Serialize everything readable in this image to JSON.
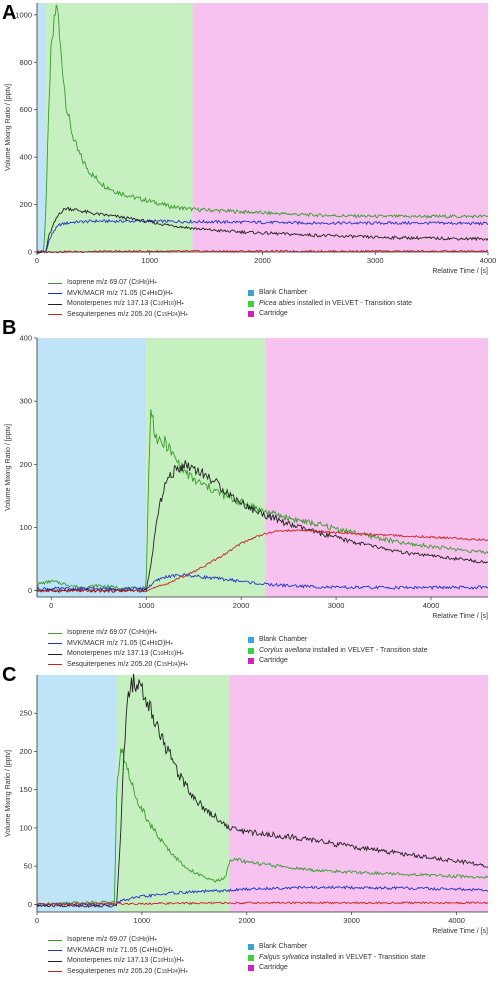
{
  "chart_data": [
    {
      "type": "line",
      "panel_label": "A",
      "title": "",
      "xlabel": "Relative Time / [s]",
      "ylabel": "Volume Mixing Ratio / [pptv]",
      "xlim": [
        0,
        4000
      ],
      "ylim": [
        0,
        1050
      ],
      "xticks": [
        0,
        1000,
        2000,
        3000,
        4000
      ],
      "yticks": [
        0,
        200,
        400,
        600,
        800,
        1000
      ],
      "phases": [
        {
          "name": "Blank Chamber",
          "start": 0,
          "end": 80,
          "color": "#bfe4f7"
        },
        {
          "name": "Picea abies installed in VELVET - Transition state",
          "start": 80,
          "end": 1380,
          "color": "#c6f0c0"
        },
        {
          "name": "Cartridge",
          "start": 1380,
          "end": 4000,
          "color": "#f8c2f0"
        }
      ],
      "phase_legend": [
        {
          "swatch": "#3aa4d8",
          "pre": "Blank Chamber",
          "italic": "",
          "post": ""
        },
        {
          "swatch": "#3ed13e",
          "pre": "",
          "italic": "Picea abies",
          "post": " installed in VELVET - Transition state"
        },
        {
          "swatch": "#d020c0",
          "pre": "Cartridge",
          "italic": "",
          "post": ""
        }
      ],
      "series": [
        {
          "name": "Isoprene m/z 69.07 (C5H8)H+",
          "color": "#3a9a2e",
          "x": [
            0,
            60,
            80,
            100,
            120,
            140,
            160,
            180,
            200,
            230,
            260,
            300,
            350,
            400,
            450,
            500,
            600,
            700,
            800,
            900,
            1000,
            1200,
            1380,
            1600,
            2000,
            2500,
            3000,
            3500,
            4000
          ],
          "y": [
            0,
            0,
            200,
            520,
            820,
            900,
            1000,
            1050,
            900,
            760,
            620,
            520,
            440,
            390,
            350,
            320,
            280,
            255,
            240,
            225,
            215,
            190,
            180,
            175,
            165,
            155,
            150,
            150,
            150
          ]
        },
        {
          "name": "MVK/MACR m/z 71.05 (C4H6O)H+",
          "color": "#2233cc",
          "x": [
            0,
            80,
            100,
            150,
            200,
            300,
            500,
            1000,
            1380,
            2000,
            2500,
            3000,
            3500,
            4000
          ],
          "y": [
            0,
            0,
            40,
            90,
            115,
            125,
            130,
            130,
            128,
            125,
            122,
            122,
            122,
            120
          ]
        },
        {
          "name": "Monoterpenes m/z 137.13 (C10H16)H+",
          "color": "#222222",
          "x": [
            0,
            80,
            100,
            150,
            200,
            260,
            300,
            400,
            500,
            700,
            900,
            1100,
            1380,
            1600,
            2000,
            2500,
            3000,
            3500,
            4000
          ],
          "y": [
            0,
            0,
            60,
            120,
            165,
            185,
            182,
            172,
            162,
            150,
            135,
            118,
            100,
            90,
            80,
            70,
            62,
            58,
            55
          ]
        },
        {
          "name": "Sesquiterpenes m/z 205.20 (C15H24)H+",
          "color": "#cc2222",
          "x": [
            0,
            500,
            1000,
            2000,
            3000,
            4000
          ],
          "y": [
            0,
            2,
            3,
            3,
            3,
            3
          ]
        }
      ]
    },
    {
      "type": "line",
      "panel_label": "B",
      "title": "",
      "xlabel": "Relative Time / [s]",
      "ylabel": "Volume Mixing Ratio / [pptv]",
      "xlim": [
        -150,
        4600
      ],
      "ylim": [
        -10,
        400
      ],
      "xticks": [
        0,
        1000,
        2000,
        3000,
        4000
      ],
      "yticks": [
        0,
        100,
        200,
        300,
        400
      ],
      "phases": [
        {
          "name": "Blank Chamber",
          "start": -150,
          "end": 1000,
          "color": "#bfe4f7"
        },
        {
          "name": "Corylus avellana installed in VELVET - Transition state",
          "start": 1000,
          "end": 2250,
          "color": "#c6f0c0"
        },
        {
          "name": "Cartridge",
          "start": 2250,
          "end": 4600,
          "color": "#f8c2f0"
        }
      ],
      "phase_legend": [
        {
          "swatch": "#3aa4d8",
          "pre": "Blank Chamber",
          "italic": "",
          "post": ""
        },
        {
          "swatch": "#3ed13e",
          "pre": "",
          "italic": "Corylus avellana",
          "post": " installed in VELVET - Transition state"
        },
        {
          "swatch": "#d020c0",
          "pre": "Cartridge",
          "italic": "",
          "post": ""
        }
      ],
      "series": [
        {
          "name": "Isoprene m/z 69.07 (C5H8)H+",
          "color": "#3a9a2e",
          "x": [
            -150,
            0,
            100,
            300,
            500,
            700,
            900,
            1000,
            1020,
            1050,
            1100,
            1150,
            1200,
            1300,
            1400,
            1500,
            1700,
            1900,
            2100,
            2250,
            2500,
            2800,
            3100,
            3400,
            3700,
            4000,
            4300,
            4600
          ],
          "y": [
            10,
            15,
            12,
            5,
            8,
            5,
            3,
            5,
            150,
            290,
            245,
            230,
            235,
            210,
            190,
            175,
            160,
            145,
            135,
            125,
            115,
            105,
            95,
            85,
            75,
            70,
            65,
            60
          ]
        },
        {
          "name": "MVK/MACR m/z 71.05 (C4H6O)H+",
          "color": "#2233cc",
          "x": [
            -150,
            1000,
            1100,
            1200,
            1400,
            1700,
            2000,
            2250,
            2500,
            3000,
            3500,
            4000,
            4600
          ],
          "y": [
            3,
            3,
            15,
            22,
            25,
            20,
            15,
            10,
            8,
            5,
            5,
            5,
            5
          ]
        },
        {
          "name": "Monoterpenes m/z 137.13 (C10H16)H+",
          "color": "#222222",
          "x": [
            -150,
            1000,
            1050,
            1100,
            1150,
            1200,
            1300,
            1400,
            1500,
            1700,
            1900,
            2100,
            2250,
            2500,
            2800,
            3100,
            3400,
            3700,
            4000,
            4300,
            4600
          ],
          "y": [
            0,
            0,
            40,
            100,
            140,
            170,
            190,
            200,
            195,
            175,
            150,
            130,
            120,
            105,
            92,
            80,
            70,
            60,
            55,
            50,
            45
          ]
        },
        {
          "name": "Sesquiterpenes m/z 205.20 (C15H24)H+",
          "color": "#cc2222",
          "x": [
            -150,
            1000,
            1200,
            1500,
            1800,
            2000,
            2200,
            2400,
            2700,
            3000,
            3500,
            4000,
            4600
          ],
          "y": [
            0,
            0,
            10,
            30,
            55,
            75,
            88,
            95,
            95,
            92,
            88,
            85,
            80
          ]
        }
      ]
    },
    {
      "type": "line",
      "panel_label": "C",
      "title": "",
      "xlabel": "Relative Time / [s]",
      "ylabel": "Volume Mixing Ratio / [pptv]",
      "xlim": [
        0,
        4300
      ],
      "ylim": [
        -10,
        300
      ],
      "xticks": [
        0,
        1000,
        2000,
        3000,
        4000
      ],
      "yticks": [
        0,
        50,
        100,
        150,
        200,
        250
      ],
      "phases": [
        {
          "name": "Blank Chamber",
          "start": 0,
          "end": 760,
          "color": "#bfe4f7"
        },
        {
          "name": "Falgus sylvatica installed in VELVET - Transition state",
          "start": 760,
          "end": 1830,
          "color": "#c6f0c0"
        },
        {
          "name": "Cartridge",
          "start": 1830,
          "end": 4300,
          "color": "#f8c2f0"
        }
      ],
      "phase_legend": [
        {
          "swatch": "#3aa4d8",
          "pre": "Blank Chamber",
          "italic": "",
          "post": ""
        },
        {
          "swatch": "#3ed13e",
          "pre": "",
          "italic": "Falgus sylvatica",
          "post": " installed in VELVET - Transition state"
        },
        {
          "swatch": "#d020c0",
          "pre": "Cartridge",
          "italic": "",
          "post": ""
        }
      ],
      "series": [
        {
          "name": "Isoprene m/z 69.07 (C5H8)H+",
          "color": "#3a9a2e",
          "x": [
            0,
            300,
            600,
            740,
            760,
            800,
            840,
            880,
            920,
            1000,
            1100,
            1200,
            1300,
            1400,
            1500,
            1600,
            1700,
            1800,
            1830,
            1900,
            2000,
            2300,
            2600,
            3000,
            3400,
            3800,
            4300
          ],
          "y": [
            0,
            2,
            3,
            3,
            150,
            205,
            190,
            165,
            150,
            125,
            100,
            80,
            65,
            50,
            42,
            35,
            30,
            35,
            55,
            60,
            55,
            50,
            45,
            42,
            40,
            38,
            35
          ]
        },
        {
          "name": "MVK/MACR m/z 71.05 (C4H6O)H+",
          "color": "#2233cc",
          "x": [
            0,
            760,
            800,
            1000,
            1300,
            1600,
            1830,
            2000,
            2500,
            3000,
            3500,
            4000,
            4300
          ],
          "y": [
            0,
            0,
            5,
            10,
            15,
            17,
            18,
            20,
            22,
            22,
            21,
            20,
            18
          ]
        },
        {
          "name": "Monoterpenes m/z 137.13 (C10H16)H+",
          "color": "#222222",
          "x": [
            0,
            760,
            800,
            830,
            860,
            900,
            950,
            1000,
            1100,
            1200,
            1300,
            1400,
            1500,
            1600,
            1700,
            1830,
            2000,
            2300,
            2600,
            3000,
            3400,
            3800,
            4100,
            4300
          ],
          "y": [
            -2,
            -2,
            100,
            200,
            260,
            290,
            290,
            280,
            250,
            215,
            185,
            160,
            140,
            125,
            115,
            100,
            95,
            90,
            85,
            75,
            68,
            60,
            55,
            50
          ]
        },
        {
          "name": "Sesquiterpenes m/z 205.20 (C15H24)H+",
          "color": "#cc2222",
          "x": [
            0,
            1000,
            2000,
            3000,
            4300
          ],
          "y": [
            0,
            1,
            2,
            2,
            2
          ]
        }
      ]
    }
  ]
}
